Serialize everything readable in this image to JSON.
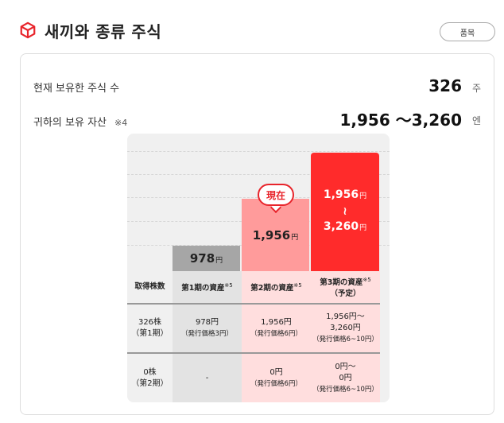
{
  "header": {
    "title": "새끼와 종류 주식",
    "button_label": "품목"
  },
  "summary": {
    "shares_label": "현재 보유한 주식 수",
    "shares_value": "326",
    "shares_unit": "주",
    "assets_label": "귀하의 보유 자산",
    "assets_note": "※4",
    "assets_value": "1,956 ～3,260",
    "assets_unit": "엔"
  },
  "chart_data": {
    "type": "bar",
    "categories": [
      "第1期の資産",
      "第2期の資産",
      "第3期の資産（予定）"
    ],
    "values": [
      978,
      1956,
      3260
    ],
    "value_range_low": [
      978,
      1956,
      1956
    ],
    "unit": "円",
    "current_badge": "現在",
    "bar_labels": {
      "b1": "978",
      "b2": "1,956",
      "b3_top": "1,956",
      "b3_sep": "≀",
      "b3_bottom": "3,260"
    },
    "bar_unit": "円",
    "colors": {
      "period1": "#a6a6a6",
      "period2": "#ff9b9b",
      "period3": "#ff2b2b",
      "badge": "#e8242b"
    }
  },
  "table": {
    "headers": [
      "取得株数",
      "第1期の資産",
      "第2期の資産",
      "第3期の資産"
    ],
    "header_sup": "※5",
    "header3_sub": "（予定）",
    "rows": [
      {
        "c0a": "326株",
        "c0b": "（第1期）",
        "c1a": "978円",
        "c1b": "（発行価格3円）",
        "c2a": "1,956円",
        "c2b": "（発行価格6円）",
        "c3a": "1,956円～",
        "c3b": "3,260円",
        "c3c": "（発行価格6~10円）"
      },
      {
        "c0a": "0株",
        "c0b": "（第2期）",
        "c1a": "-",
        "c2a": "0円",
        "c2b": "（発行価格6円）",
        "c3a": "0円～",
        "c3b": "0円",
        "c3c": "（発行価格6~10円）"
      }
    ]
  }
}
